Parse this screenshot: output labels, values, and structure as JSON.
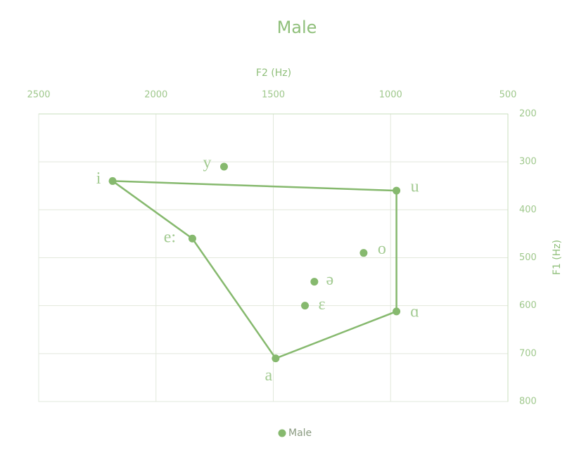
{
  "chart_data": {
    "type": "scatter",
    "title": "Male",
    "x_label": "F2 (Hz)",
    "y_label": "F1 (Hz)",
    "xlim": [
      500,
      2500
    ],
    "xticks": [
      2500,
      2000,
      1500,
      1000,
      500
    ],
    "x_inverted": true,
    "x_axis_position": "top",
    "ylim": [
      200,
      800
    ],
    "yticks": [
      200,
      300,
      400,
      500,
      600,
      700,
      800
    ],
    "y_inverted": true,
    "y_axis_position": "right",
    "grid": true,
    "legend": "bottom",
    "series": [
      {
        "name": "Male",
        "color": "#86b96e",
        "x": [
          2185,
          1710,
          975,
          1845,
          1115,
          1325,
          1365,
          975,
          1490
        ],
        "values": [
          340,
          310,
          360,
          460,
          490,
          550,
          600,
          612,
          710
        ],
        "point_labels": [
          "i",
          "y",
          "u",
          "e:",
          "o",
          "ə",
          "ɛ",
          "ɑ",
          "a"
        ]
      },
      {
        "color": "#86b96e",
        "marker": false,
        "x": [
          2185,
          975,
          975,
          1490,
          1845,
          2185
        ],
        "values": [
          340,
          360,
          612,
          710,
          460,
          340
        ]
      }
    ]
  }
}
